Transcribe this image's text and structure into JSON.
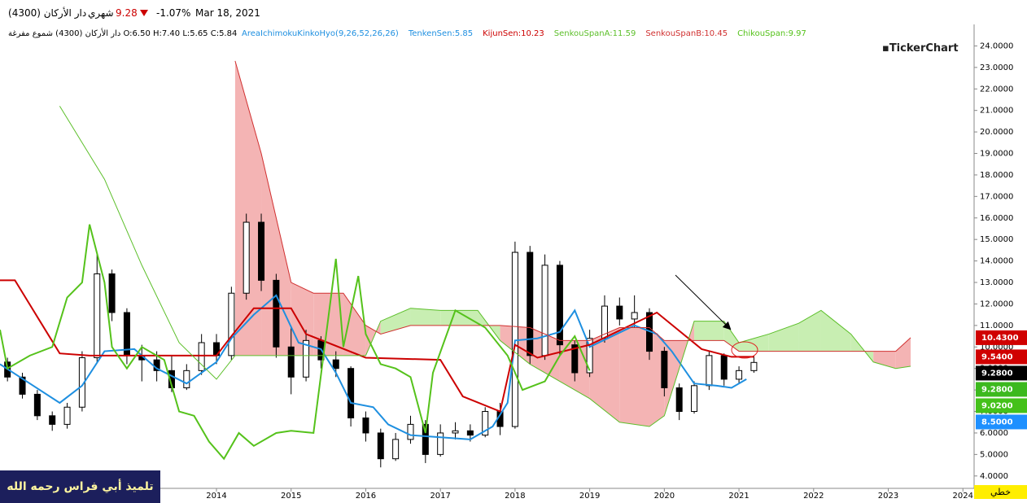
{
  "header": {
    "symbol": "دار الأركان (4300)",
    "period": "شهري",
    "price": "9.28",
    "change": "-1.07%",
    "date": "Mar 18, 2021"
  },
  "info_line": "دار الأركان (4300) شموع مفرغة O:6.50 H:7.40 L:5.65 C:5.84",
  "indicator": {
    "text": "AreaIchimokuKinkoHyo(9,26,52,26,26)",
    "color": "#1e8fe0"
  },
  "logo": "TickerChart",
  "banner": "تلميذ أبي فراس رحمه الله",
  "mode_button": "خطي",
  "chart_data": {
    "type": "candlestick",
    "xlim": [
      2011.1,
      2024.15
    ],
    "xticks": [
      2014,
      2015,
      2016,
      2017,
      2018,
      2019,
      2020,
      2021,
      2022,
      2023,
      2024
    ],
    "ylim": [
      3.5,
      25
    ],
    "yticks": [
      {
        "value": 4,
        "label": "4.0000"
      },
      {
        "value": 5,
        "label": "5.0000"
      },
      {
        "value": 6,
        "label": "6.0000"
      },
      {
        "value": 7,
        "label": "7.0000"
      },
      {
        "value": 8,
        "label": "8.0000"
      },
      {
        "value": 9,
        "label": "9.0000"
      },
      {
        "value": 10,
        "label": "10.0000"
      },
      {
        "value": 11,
        "label": "11.0000"
      },
      {
        "value": 12,
        "label": "12.0000"
      },
      {
        "value": 13,
        "label": "13.0000"
      },
      {
        "value": 14,
        "label": "14.0000"
      },
      {
        "value": 15,
        "label": "15.0000"
      },
      {
        "value": 16,
        "label": "16.0000"
      },
      {
        "value": 17,
        "label": "17.0000"
      },
      {
        "value": 18,
        "label": "18.0000"
      },
      {
        "value": 19,
        "label": "19.0000"
      },
      {
        "value": 20,
        "label": "20.0000"
      },
      {
        "value": 21,
        "label": "21.0000"
      },
      {
        "value": 22,
        "label": "22.0000"
      },
      {
        "value": 23,
        "label": "23.0000"
      },
      {
        "value": 24,
        "label": "24.0000"
      }
    ],
    "grid": false,
    "candles": {
      "x": [
        2011.2,
        2011.4,
        2011.6,
        2011.8,
        2012.0,
        2012.2,
        2012.4,
        2012.6,
        2012.8,
        2013.0,
        2013.2,
        2013.4,
        2013.6,
        2013.8,
        2014.0,
        2014.2,
        2014.4,
        2014.6,
        2014.8,
        2015.0,
        2015.2,
        2015.4,
        2015.6,
        2015.8,
        2016.0,
        2016.2,
        2016.4,
        2016.6,
        2016.8,
        2017.0,
        2017.2,
        2017.4,
        2017.6,
        2017.8,
        2018.0,
        2018.2,
        2018.4,
        2018.6,
        2018.8,
        2019.0,
        2019.2,
        2019.4,
        2019.6,
        2019.8,
        2020.0,
        2020.2,
        2020.4,
        2020.6,
        2020.8,
        2021.0,
        2021.2
      ],
      "open": [
        9.3,
        8.6,
        7.8,
        6.8,
        6.4,
        7.2,
        9.5,
        13.4,
        11.6,
        9.6,
        9.4,
        8.9,
        8.1,
        8.9,
        10.2,
        9.6,
        12.5,
        15.8,
        13.1,
        10.0,
        8.6,
        10.3,
        9.4,
        9.0,
        6.7,
        6.0,
        4.8,
        5.7,
        6.4,
        5.0,
        6.0,
        6.1,
        5.9,
        7.0,
        6.3,
        14.4,
        9.6,
        13.8,
        10.1,
        8.8,
        10.4,
        11.9,
        11.3,
        11.6,
        9.8,
        8.1,
        7.0,
        8.2,
        9.6,
        8.5,
        8.9
      ],
      "high": [
        9.5,
        8.8,
        8.0,
        7.0,
        7.4,
        9.8,
        14.3,
        13.6,
        11.8,
        10.1,
        9.8,
        9.6,
        9.2,
        10.6,
        10.6,
        12.8,
        16.2,
        16.2,
        13.4,
        10.9,
        10.8,
        10.5,
        9.8,
        9.1,
        7.0,
        6.2,
        6.0,
        6.8,
        6.6,
        6.4,
        6.5,
        6.4,
        7.2,
        7.4,
        14.9,
        14.7,
        14.3,
        14.0,
        10.3,
        10.8,
        12.4,
        12.3,
        12.4,
        11.8,
        10.0,
        8.3,
        8.4,
        9.8,
        9.7,
        9.1,
        9.6
      ],
      "low": [
        8.4,
        7.6,
        6.6,
        6.1,
        6.2,
        7.0,
        9.3,
        11.2,
        9.2,
        8.4,
        8.4,
        7.9,
        8.0,
        8.7,
        9.2,
        9.4,
        12.2,
        12.6,
        9.5,
        7.8,
        8.4,
        9.0,
        8.6,
        6.3,
        5.6,
        4.4,
        4.7,
        5.5,
        4.6,
        4.9,
        5.7,
        5.6,
        5.8,
        5.9,
        6.2,
        9.2,
        9.4,
        9.6,
        8.4,
        8.6,
        10.2,
        11.0,
        10.9,
        9.4,
        7.7,
        6.6,
        6.9,
        8.0,
        8.2,
        8.3,
        8.8
      ],
      "close": [
        8.6,
        7.8,
        6.8,
        6.4,
        7.2,
        9.5,
        13.4,
        11.6,
        9.6,
        9.4,
        8.9,
        8.1,
        8.9,
        10.2,
        9.6,
        12.5,
        15.8,
        13.1,
        10.0,
        8.6,
        10.3,
        9.4,
        9.0,
        6.7,
        6.0,
        4.8,
        5.7,
        6.4,
        5.0,
        6.0,
        6.1,
        5.9,
        7.0,
        6.3,
        14.4,
        9.6,
        13.8,
        10.1,
        8.8,
        10.4,
        11.9,
        11.3,
        11.6,
        9.8,
        8.1,
        7.0,
        8.2,
        9.6,
        8.5,
        8.9,
        9.28
      ]
    },
    "series": [
      {
        "name": "TenkenSen:5.85",
        "color": "#1e8fe0",
        "width": 2,
        "x": [
          2011.1,
          2011.5,
          2011.9,
          2012.2,
          2012.5,
          2012.9,
          2013.2,
          2013.6,
          2014.0,
          2014.2,
          2014.5,
          2014.8,
          2015.1,
          2015.4,
          2015.6,
          2015.8,
          2016.1,
          2016.3,
          2016.6,
          2017.0,
          2017.4,
          2017.7,
          2017.9,
          2018.0,
          2018.3,
          2018.6,
          2018.8,
          2019.0,
          2019.3,
          2019.6,
          2019.9,
          2020.1,
          2020.4,
          2020.7,
          2020.9,
          2021.1
        ],
        "values": [
          9.2,
          8.3,
          7.4,
          8.2,
          9.8,
          9.9,
          9.0,
          8.3,
          9.3,
          10.4,
          11.5,
          12.4,
          10.2,
          9.9,
          8.8,
          7.4,
          7.2,
          6.4,
          5.9,
          5.8,
          5.7,
          6.3,
          7.4,
          10.3,
          10.4,
          10.7,
          11.7,
          10.0,
          10.5,
          11.0,
          10.6,
          9.8,
          8.3,
          8.2,
          8.1,
          8.5
        ]
      },
      {
        "name": "KijunSen:10.23",
        "color": "#cc0000",
        "width": 2,
        "x": [
          2011.1,
          2011.3,
          2011.6,
          2011.9,
          2012.3,
          2014.0,
          2014.2,
          2014.5,
          2015.0,
          2015.2,
          2016.0,
          2017.0,
          2017.3,
          2017.8,
          2018.0,
          2018.3,
          2019.0,
          2019.9,
          2020.5,
          2020.9,
          2021.2
        ],
        "values": [
          13.1,
          13.1,
          11.4,
          9.7,
          9.6,
          9.6,
          10.5,
          11.8,
          11.8,
          10.6,
          9.5,
          9.4,
          7.7,
          7.0,
          10.1,
          9.5,
          10.1,
          11.6,
          9.9,
          9.54,
          9.54
        ]
      },
      {
        "name": "SenkouSpanA:11.59",
        "color": "#5cbf2a",
        "width": 1,
        "x": [
          2011.9,
          2012.5,
          2013.0,
          2013.5,
          2014.0,
          2014.25,
          2014.6,
          2015.0,
          2015.3,
          2015.7,
          2016.0,
          2016.2,
          2016.6,
          2017.0,
          2017.5,
          2017.8,
          2018.2,
          2018.6,
          2019.0,
          2019.4,
          2019.8,
          2020.0,
          2020.4,
          2020.8,
          2021.0,
          2021.4,
          2021.8,
          2022.1,
          2022.5,
          2022.8,
          2023.1,
          2023.3
        ],
        "values": [
          21.2,
          17.8,
          13.8,
          10.2,
          8.5,
          9.6,
          9.6,
          9.6,
          9.6,
          9.6,
          9.6,
          11.2,
          11.8,
          11.7,
          11.7,
          10.3,
          9.2,
          8.4,
          7.6,
          6.5,
          6.3,
          6.8,
          11.2,
          11.2,
          10.2,
          10.6,
          11.1,
          11.7,
          10.6,
          9.3,
          9.0,
          9.1
        ]
      },
      {
        "name": "SenkouSpanB:10.45",
        "color": "#d03030",
        "width": 1,
        "x": [
          2011.9,
          2012.5,
          2013.0,
          2013.5,
          2014.0,
          2014.25,
          2014.6,
          2015.0,
          2015.3,
          2015.7,
          2016.0,
          2016.2,
          2016.6,
          2017.0,
          2017.5,
          2017.8,
          2018.2,
          2018.6,
          2019.0,
          2019.4,
          2019.8,
          2020.0,
          2020.4,
          2020.8,
          2021.0,
          2021.4,
          2021.8,
          2022.1,
          2022.5,
          2022.8,
          2023.1,
          2023.3
        ],
        "values": [
          null,
          null,
          null,
          null,
          null,
          23.3,
          19.0,
          13.0,
          12.5,
          12.5,
          11.0,
          10.6,
          11.0,
          11.0,
          11.0,
          11.0,
          10.9,
          10.3,
          10.3,
          10.9,
          10.9,
          10.3,
          10.3,
          10.3,
          9.8,
          9.8,
          9.8,
          9.8,
          9.8,
          9.8,
          9.8,
          10.43
        ]
      },
      {
        "name": "ChikouSpan:9.97",
        "color": "#55c21b",
        "width": 2,
        "x": [
          2011.1,
          2011.2,
          2011.5,
          2011.8,
          2012.0,
          2012.2,
          2012.3,
          2012.5,
          2012.6,
          2012.8,
          2013.0,
          2013.3,
          2013.5,
          2013.7,
          2013.9,
          2014.1,
          2014.3,
          2014.5,
          2014.8,
          2015.0,
          2015.3,
          2015.6,
          2015.7,
          2015.9,
          2016.0,
          2016.2,
          2016.4,
          2016.6,
          2016.8,
          2016.9,
          2017.2,
          2017.6,
          2017.9,
          2018.1,
          2018.4,
          2018.6,
          2018.8,
          2019.0
        ],
        "values": [
          10.8,
          9.0,
          9.6,
          10.0,
          12.3,
          13.0,
          15.7,
          13.0,
          10.0,
          9.0,
          10.0,
          9.4,
          7.0,
          6.8,
          5.6,
          4.8,
          6.0,
          5.4,
          6.0,
          6.1,
          6.0,
          14.1,
          10.0,
          13.3,
          10.6,
          9.2,
          9.0,
          8.6,
          6.0,
          8.8,
          11.7,
          10.9,
          9.6,
          8.0,
          8.4,
          9.6,
          10.5,
          8.9
        ]
      }
    ],
    "cloud_colors": {
      "bear": "#f4b4b4",
      "bull": "#c8eeb2"
    },
    "price_tags": [
      {
        "value": 10.43,
        "label": "10.4300",
        "color": "#d00000",
        "text_color": "#ffffff"
      },
      {
        "value": 9.54,
        "label": "9.5400",
        "color": "#d00000",
        "text_color": "#ffffff"
      },
      {
        "value": 9.28,
        "label": "9.2800",
        "color": "#000000",
        "text_color": "#ffffff"
      },
      {
        "value": 9.28,
        "label": "9.2800",
        "color": "#3cb91e",
        "text_color": "#ffffff"
      },
      {
        "value": 9.02,
        "label": "9.0200",
        "color": "#44c11a",
        "text_color": "#ffffff"
      },
      {
        "value": 8.5,
        "label": "8.5000",
        "color": "#1e90ff",
        "text_color": "#ffffff"
      }
    ]
  }
}
